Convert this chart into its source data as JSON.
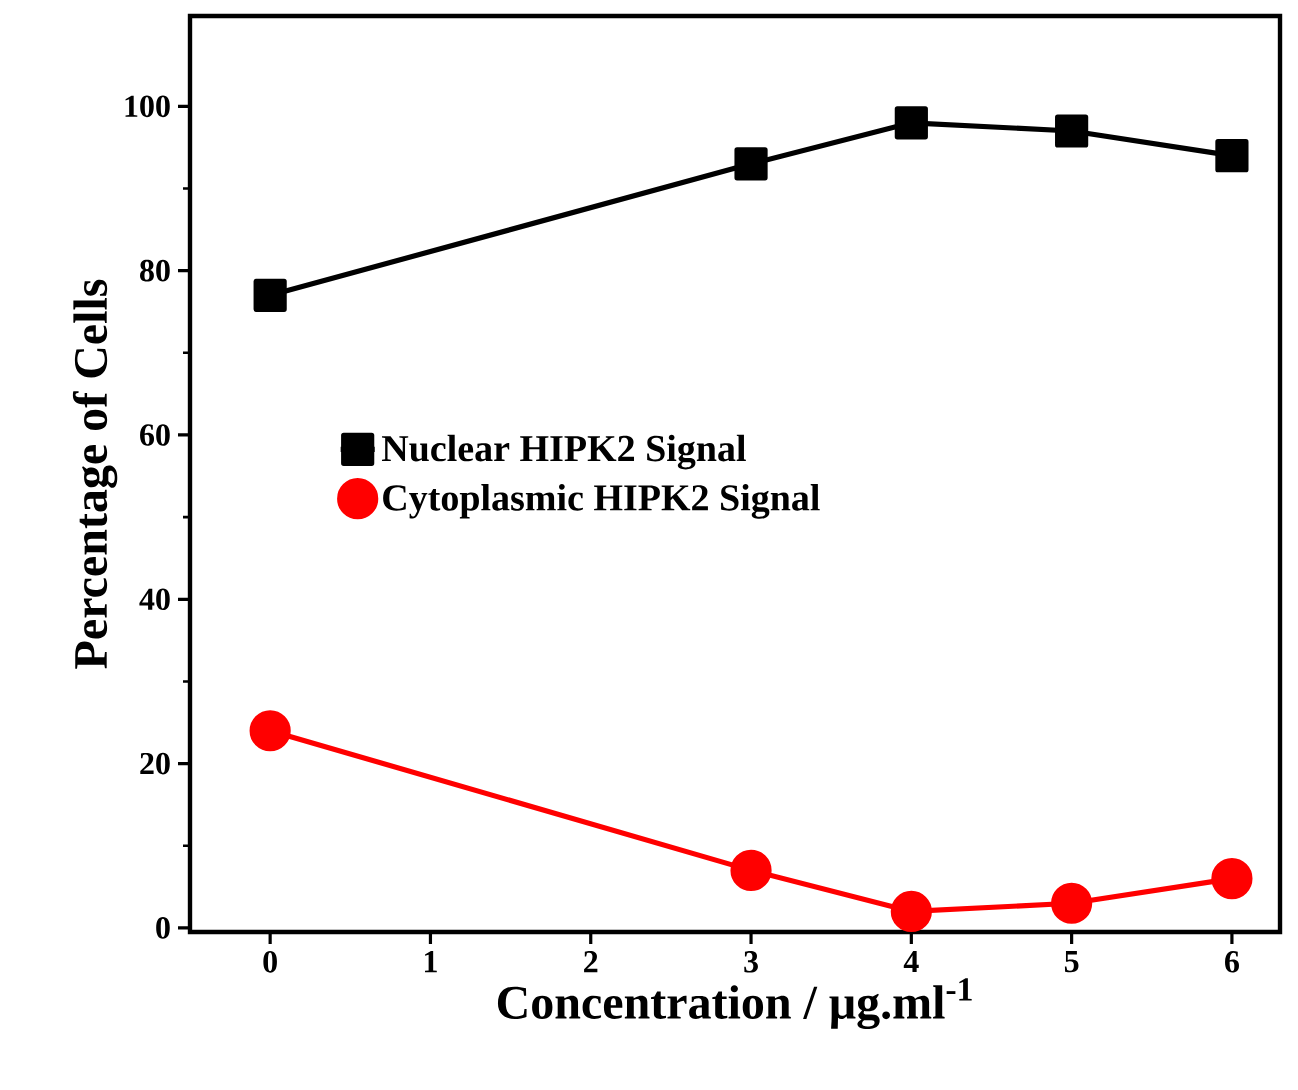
{
  "chart_data": {
    "type": "line",
    "xlabel": "Concentration / μg.ml$^{-1}$",
    "ylabel": "Percentage of Cells",
    "xlim": [
      -0.5,
      6.3
    ],
    "ylim": [
      -0.5,
      111
    ],
    "xticks": [
      0,
      1,
      2,
      3,
      4,
      5,
      6
    ],
    "yticks": [
      0,
      20,
      40,
      60,
      80,
      100
    ],
    "legend": "left",
    "grid": false,
    "series": [
      {
        "name": "Nuclear HIPK2 Signal",
        "color": "#000000",
        "marker": "square",
        "x": [
          0,
          3,
          4,
          5,
          6
        ],
        "values": [
          77,
          93,
          98,
          97,
          94
        ]
      },
      {
        "name": "Cytoplasmic HIPK2 Signal",
        "color": "#ff0000",
        "marker": "circle",
        "x": [
          0,
          3,
          4,
          5,
          6
        ],
        "values": [
          24,
          7,
          2,
          3,
          6
        ]
      }
    ]
  }
}
